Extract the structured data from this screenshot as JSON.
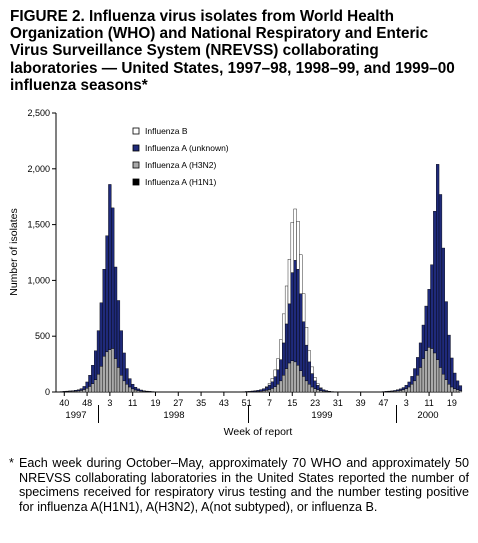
{
  "title": "FIGURE 2. Influenza virus isolates from World Health Organization (WHO) and National Respiratory and Enteric Virus Surveillance System (NREVSS) collaborating laboratories — United States, 1997–98, 1998–99, and 1999–00 influenza seasons*",
  "footnote": {
    "marker": "*",
    "text": "Each week during October–May, approximately 70 WHO and approximately 50 NREVSS collaborating laboratories in the United States reported the number of specimens received for respiratory virus testing and the number testing positive for influenza A(H1N1), A(H3N2), A(not subtyped), or influenza B."
  },
  "chart_data": {
    "type": "bar",
    "stacked": true,
    "ylabel": "Number of isolates",
    "xlabel": "Week of report",
    "ylim": [
      0,
      2500
    ],
    "yticks": [
      0,
      500,
      1000,
      1500,
      2000,
      2500
    ],
    "ytick_labels": [
      "0",
      "500",
      "1,000",
      "1,500",
      "2,000",
      "2,500"
    ],
    "xtick_labels": [
      "40",
      "48",
      "3",
      "11",
      "19",
      "27",
      "35",
      "43",
      "51",
      "7",
      "15",
      "23",
      "31",
      "39",
      "47",
      "3",
      "11",
      "19"
    ],
    "year_labels": [
      "1997",
      "1998",
      "1999",
      "2000"
    ],
    "legend": [
      "Influenza B",
      "Influenza A (unknown)",
      "Influenza A (H3N2)",
      "Influenza A (H1N1)"
    ],
    "legend_position": "top-center",
    "colors": {
      "Influenza B": "#ffffff",
      "Influenza A (unknown)": "#1f2a7a",
      "Influenza A (H3N2)": "#a9a9a9",
      "Influenza A (H1N1)": "#000000"
    },
    "total_weeks": 141,
    "series": [
      {
        "name": "Influenza A (H1N1)",
        "values": [
          0,
          0,
          0,
          0,
          0,
          0,
          0,
          0,
          0,
          0,
          0,
          0,
          0,
          0,
          0,
          0,
          0,
          0,
          0,
          0,
          0,
          0,
          0,
          0,
          0,
          0,
          0,
          0,
          0,
          0,
          0,
          0,
          0,
          0,
          0,
          0,
          0,
          0,
          0,
          0,
          0,
          0,
          0,
          0,
          0,
          0,
          0,
          0,
          0,
          0,
          0,
          0,
          0,
          0,
          0,
          0,
          0,
          0,
          0,
          0,
          0,
          0,
          0,
          0,
          0,
          0,
          0,
          0,
          0,
          0,
          0,
          0,
          0,
          0,
          0,
          0,
          0,
          0,
          0,
          0,
          0,
          0,
          0,
          0,
          0,
          0,
          0,
          0,
          0,
          0,
          0,
          0,
          0,
          0,
          0,
          0,
          0,
          0,
          0,
          0,
          0,
          0,
          0,
          0,
          0,
          0,
          0,
          0,
          0,
          0,
          0,
          0,
          0,
          0,
          0,
          0,
          0,
          0,
          0,
          0,
          0,
          0,
          0,
          0,
          0,
          0,
          0,
          0,
          0,
          0,
          0,
          0,
          0,
          0,
          0,
          0,
          0,
          0,
          0,
          0,
          0
        ]
      },
      {
        "name": "Influenza A (H3N2)",
        "values": [
          2,
          3,
          4,
          5,
          6,
          8,
          10,
          14,
          22,
          34,
          50,
          75,
          110,
          160,
          230,
          320,
          360,
          380,
          390,
          300,
          220,
          150,
          100,
          70,
          45,
          28,
          18,
          12,
          8,
          5,
          4,
          3,
          2,
          1,
          0,
          0,
          0,
          0,
          0,
          0,
          0,
          0,
          0,
          0,
          0,
          0,
          0,
          0,
          0,
          0,
          0,
          0,
          0,
          0,
          0,
          0,
          0,
          0,
          0,
          0,
          0,
          0,
          0,
          1,
          1,
          2,
          2,
          3,
          4,
          5,
          7,
          10,
          15,
          22,
          32,
          48,
          70,
          100,
          150,
          210,
          260,
          280,
          270,
          240,
          190,
          140,
          100,
          70,
          45,
          30,
          20,
          12,
          8,
          5,
          3,
          2,
          1,
          1,
          0,
          0,
          0,
          0,
          0,
          0,
          0,
          0,
          0,
          0,
          0,
          0,
          0,
          0,
          1,
          2,
          3,
          4,
          5,
          7,
          10,
          14,
          20,
          30,
          45,
          70,
          100,
          150,
          220,
          300,
          370,
          400,
          390,
          350,
          290,
          220,
          160,
          110,
          70,
          45,
          30,
          20,
          12
        ]
      },
      {
        "name": "Influenza A (unknown)",
        "values": [
          2,
          3,
          4,
          5,
          6,
          8,
          10,
          16,
          28,
          56,
          100,
          165,
          260,
          390,
          570,
          780,
          1040,
          1480,
          1260,
          820,
          600,
          400,
          250,
          140,
          75,
          42,
          25,
          16,
          10,
          6,
          4,
          3,
          2,
          1,
          0,
          0,
          0,
          0,
          0,
          0,
          0,
          0,
          0,
          0,
          0,
          0,
          0,
          0,
          0,
          0,
          0,
          0,
          0,
          0,
          0,
          0,
          0,
          0,
          0,
          0,
          0,
          0,
          1,
          1,
          2,
          3,
          4,
          6,
          8,
          10,
          14,
          20,
          28,
          40,
          60,
          90,
          130,
          190,
          290,
          400,
          530,
          790,
          910,
          860,
          690,
          490,
          320,
          200,
          120,
          70,
          40,
          22,
          12,
          8,
          4,
          2,
          1,
          1,
          0,
          0,
          0,
          0,
          0,
          0,
          0,
          0,
          0,
          0,
          0,
          0,
          0,
          0,
          1,
          2,
          3,
          4,
          5,
          7,
          10,
          14,
          20,
          30,
          45,
          70,
          110,
          160,
          220,
          300,
          400,
          520,
          750,
          1270,
          1750,
          1550,
          1130,
          700,
          440,
          260,
          140,
          80,
          45,
          25,
          16,
          10
        ]
      },
      {
        "name": "Influenza B",
        "values": [
          0,
          0,
          0,
          0,
          0,
          0,
          0,
          0,
          0,
          0,
          0,
          0,
          0,
          0,
          0,
          0,
          0,
          0,
          0,
          0,
          0,
          0,
          0,
          0,
          0,
          0,
          0,
          0,
          0,
          0,
          0,
          0,
          0,
          0,
          0,
          0,
          0,
          0,
          0,
          0,
          0,
          0,
          0,
          0,
          0,
          0,
          0,
          0,
          0,
          0,
          0,
          0,
          0,
          0,
          0,
          0,
          0,
          0,
          0,
          0,
          0,
          0,
          0,
          0,
          0,
          0,
          0,
          0,
          0,
          0,
          0,
          0,
          5,
          15,
          30,
          60,
          100,
          180,
          260,
          340,
          400,
          450,
          460,
          430,
          350,
          250,
          160,
          100,
          60,
          30,
          15,
          5,
          0,
          0,
          0,
          0,
          0,
          0,
          0,
          0,
          0,
          0,
          0,
          0,
          0,
          0,
          0,
          0,
          0,
          0,
          0,
          0,
          0,
          0,
          0,
          0,
          0,
          0,
          0,
          0,
          0,
          0,
          0,
          0,
          0,
          0,
          0,
          0,
          0,
          0,
          0,
          0,
          0,
          0,
          0,
          0,
          0,
          0,
          0,
          0,
          0,
          0,
          0
        ]
      }
    ]
  }
}
